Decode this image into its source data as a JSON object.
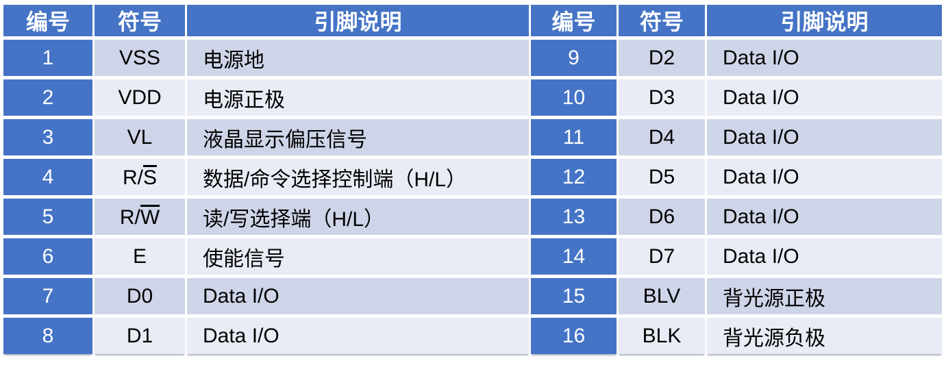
{
  "colors": {
    "header_bg": "#4574C6",
    "number_column_bg": "#4574C6",
    "band_dark": "#CFD5E8",
    "band_light": "#E9ECF5",
    "header_text": "#FFFFFF",
    "body_text": "#000000",
    "page_bg": "#FFFFFF"
  },
  "table": {
    "headers": {
      "num": "编号",
      "sym": "符号",
      "desc": "引脚说明"
    },
    "left_rows": [
      {
        "num": "1",
        "sym": "VSS",
        "sym_ov": "",
        "desc": "电源地"
      },
      {
        "num": "2",
        "sym": "VDD",
        "sym_ov": "",
        "desc": "电源正极"
      },
      {
        "num": "3",
        "sym": "VL",
        "sym_ov": "",
        "desc": "液晶显示偏压信号"
      },
      {
        "num": "4",
        "sym": "R/",
        "sym_ov": "S",
        "desc": "数据/命令选择控制端（H/L）"
      },
      {
        "num": "5",
        "sym": "R/",
        "sym_ov": "W",
        "desc": "读/写选择端（H/L）"
      },
      {
        "num": "6",
        "sym": "E",
        "sym_ov": "",
        "desc": "使能信号"
      },
      {
        "num": "7",
        "sym": "D0",
        "sym_ov": "",
        "desc": "Data I/O"
      },
      {
        "num": "8",
        "sym": "D1",
        "sym_ov": "",
        "desc": "Data I/O"
      }
    ],
    "right_rows": [
      {
        "num": "9",
        "sym": "D2",
        "sym_ov": "",
        "desc": "Data I/O"
      },
      {
        "num": "10",
        "sym": "D3",
        "sym_ov": "",
        "desc": "Data I/O"
      },
      {
        "num": "11",
        "sym": "D4",
        "sym_ov": "",
        "desc": "Data I/O"
      },
      {
        "num": "12",
        "sym": "D5",
        "sym_ov": "",
        "desc": "Data I/O"
      },
      {
        "num": "13",
        "sym": "D6",
        "sym_ov": "",
        "desc": "Data I/O"
      },
      {
        "num": "14",
        "sym": "D7",
        "sym_ov": "",
        "desc": "Data I/O"
      },
      {
        "num": "15",
        "sym": "BLV",
        "sym_ov": "",
        "desc": "背光源正极"
      },
      {
        "num": "16",
        "sym": "BLK",
        "sym_ov": "",
        "desc": "背光源负极"
      }
    ]
  }
}
